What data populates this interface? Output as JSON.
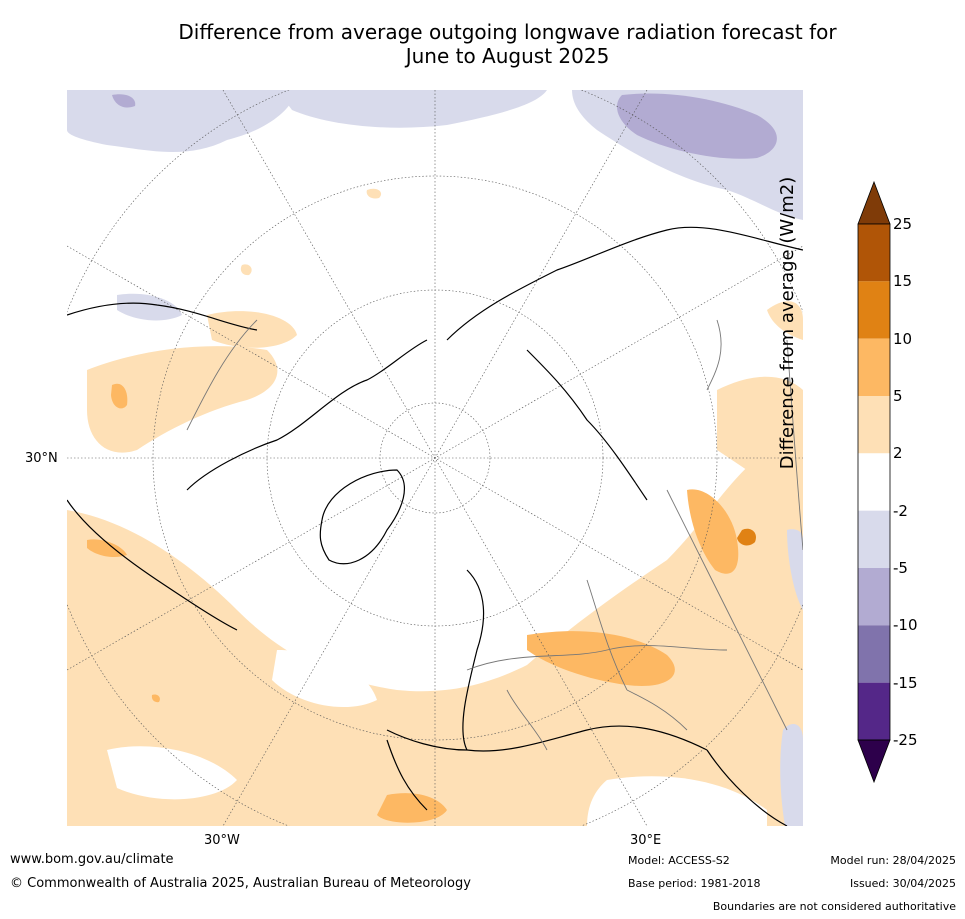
{
  "title_line1": "Difference from average outgoing longwave radiation forecast for",
  "title_line2": "June to August 2025",
  "map": {
    "lat_label": "30°N",
    "lon_label_west": "30°W",
    "lon_label_east": "30°E"
  },
  "colorbar": {
    "title": "Difference from average (W/m2)",
    "ticks": [
      "25",
      "15",
      "10",
      "5",
      "2",
      "-2",
      "-5",
      "-10",
      "-15",
      "-25"
    ],
    "bins": [
      {
        "range": "15 to 25",
        "color": "#b05507"
      },
      {
        "range": "10 to 15",
        "color": "#e08214"
      },
      {
        "range": "5 to 10",
        "color": "#fdb863"
      },
      {
        "range": "2 to 5",
        "color": "#fee0b6"
      },
      {
        "range": "-2 to 2",
        "color": "#ffffff"
      },
      {
        "range": "-5 to -2",
        "color": "#d8daeb"
      },
      {
        "range": "-10 to -5",
        "color": "#b2abd2"
      },
      {
        "range": "-15 to -10",
        "color": "#8073ac"
      },
      {
        "range": "-25 to -15",
        "color": "#542788"
      }
    ],
    "arrow_top_color": "#7f3b08",
    "arrow_bottom_color": "#2d004b"
  },
  "footer": {
    "website": "www.bom.gov.au/climate",
    "copyright": "© Commonwealth of Australia 2025, Australian Bureau of Meteorology",
    "model": "Model: ACCESS-S2",
    "base_period": "Base period: 1981-2018",
    "model_run": "Model run: 28/04/2025",
    "issued": "Issued: 30/04/2025",
    "disclaimer": "Boundaries are not considered authoritative"
  }
}
